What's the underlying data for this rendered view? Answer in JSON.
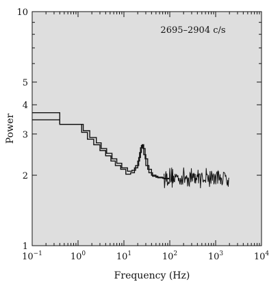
{
  "chart_data": {
    "type": "line",
    "title": "",
    "annotation": "2695–2904 c/s",
    "xlabel": "Frequency (Hz)",
    "ylabel": "Power",
    "xscale": "log",
    "yscale": "log",
    "xlim": [
      0.1,
      10000
    ],
    "ylim": [
      1,
      10
    ],
    "x_tick_labels": [
      {
        "value": 0.1,
        "base": "10",
        "exp": "−1"
      },
      {
        "value": 1,
        "base": "10",
        "exp": "0"
      },
      {
        "value": 10,
        "base": "10",
        "exp": "1"
      },
      {
        "value": 100,
        "base": "10",
        "exp": "2"
      },
      {
        "value": 1000,
        "base": "10",
        "exp": "3"
      },
      {
        "value": 10000,
        "base": "10",
        "exp": "4"
      }
    ],
    "y_tick_labels": [
      {
        "value": 1,
        "label": "1"
      },
      {
        "value": 2,
        "label": "2"
      },
      {
        "value": 3,
        "label": "3"
      },
      {
        "value": 4,
        "label": "4"
      },
      {
        "value": 5,
        "label": "5"
      },
      {
        "value": 10,
        "label": "10"
      }
    ],
    "grid": false,
    "series": [
      {
        "x": [
          0.1,
          0.4,
          0.4,
          0.9,
          0.9,
          1.3,
          1.3,
          1.8,
          1.8,
          2.5,
          2.5,
          3.2,
          3.2,
          4.2,
          4.2,
          5.5,
          5.5,
          7,
          7,
          9,
          9,
          12,
          12,
          15,
          15,
          18,
          18,
          21,
          21,
          23,
          23,
          25,
          25,
          27,
          27,
          30,
          30,
          35,
          35,
          42,
          42,
          55,
          55,
          75,
          75,
          100
        ],
        "y": [
          3.7,
          3.7,
          3.3,
          3.3,
          3.3,
          3.3,
          3.1,
          3.1,
          2.9,
          2.9,
          2.75,
          2.75,
          2.6,
          2.6,
          2.48,
          2.48,
          2.35,
          2.35,
          2.25,
          2.25,
          2.15,
          2.15,
          2.08,
          2.08,
          2.1,
          2.1,
          2.2,
          2.2,
          2.38,
          2.38,
          2.62,
          2.62,
          2.7,
          2.7,
          2.45,
          2.45,
          2.2,
          2.2,
          2.05,
          2.05,
          1.98,
          1.98,
          1.95,
          1.95,
          1.93,
          1.93
        ]
      },
      {
        "x": [
          0.1,
          0.4,
          0.4,
          1.2,
          1.2,
          1.6,
          1.6,
          2.2,
          2.2,
          3,
          3,
          4,
          4,
          5.2,
          5.2,
          6.5,
          6.5,
          8.5,
          8.5,
          11,
          11,
          14,
          14,
          17,
          17,
          20,
          20,
          22,
          22,
          24,
          24,
          26,
          26,
          29,
          29,
          33,
          33,
          40,
          40,
          50,
          50,
          70,
          70,
          100
        ],
        "y": [
          3.45,
          3.45,
          3.3,
          3.3,
          3.05,
          3.05,
          2.85,
          2.85,
          2.7,
          2.7,
          2.55,
          2.55,
          2.42,
          2.42,
          2.3,
          2.3,
          2.2,
          2.2,
          2.12,
          2.12,
          2.02,
          2.02,
          2.05,
          2.05,
          2.15,
          2.15,
          2.3,
          2.3,
          2.5,
          2.5,
          2.68,
          2.68,
          2.6,
          2.6,
          2.35,
          2.35,
          2.12,
          2.12,
          2.0,
          2.0,
          1.96,
          1.96,
          1.94,
          1.94
        ]
      }
    ],
    "noise_band": {
      "x_start": 75,
      "x_end": 2000,
      "y_center": 1.96,
      "y_amplitude_fraction": 0.08
    }
  }
}
